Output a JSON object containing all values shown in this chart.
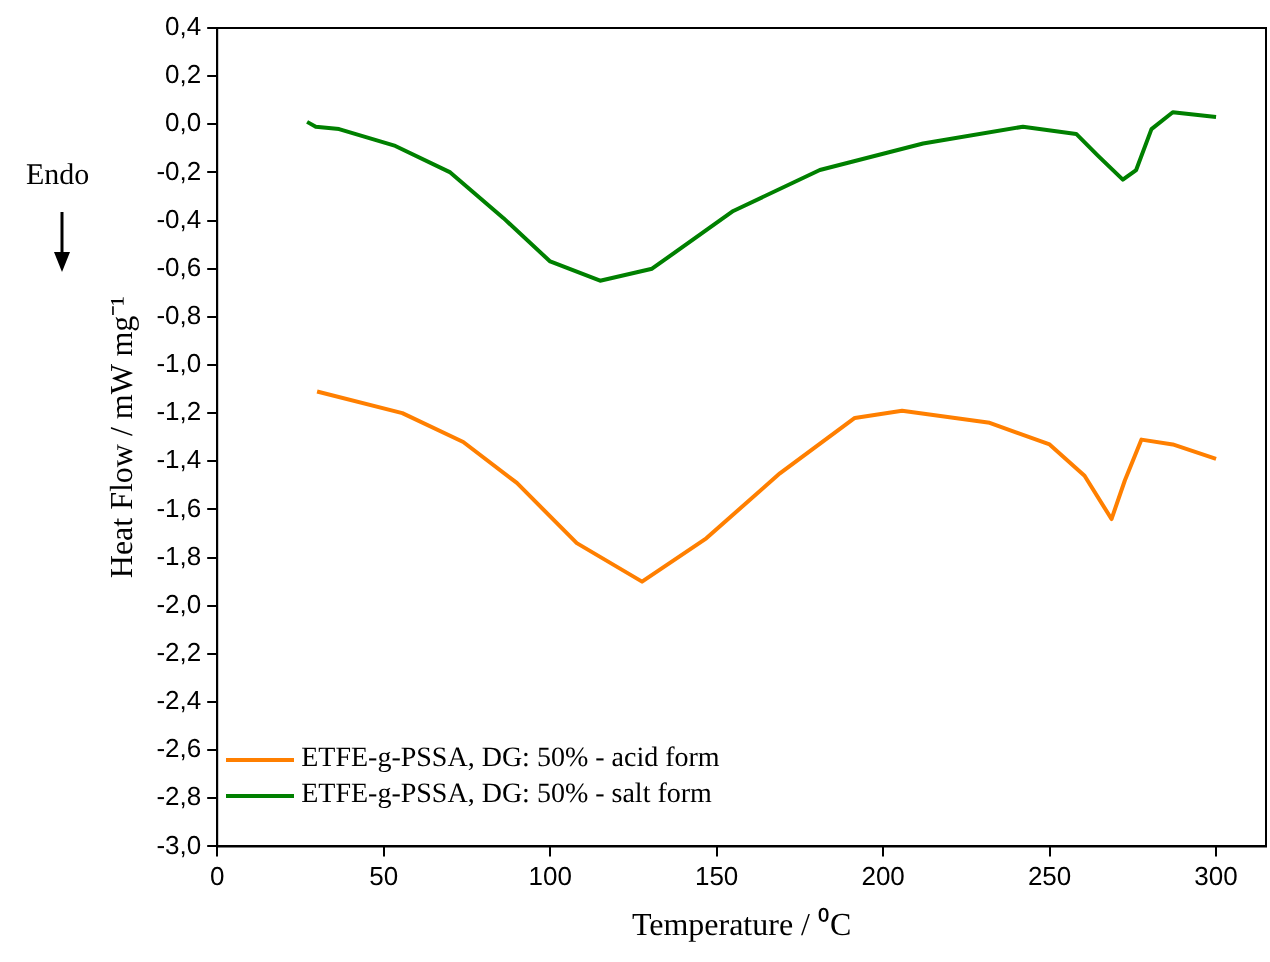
{
  "chart_data": {
    "type": "line",
    "xlabel": "Temperature / ⁰C",
    "ylabel": "Heat Flow / mW mg⁻¹",
    "annotations": [
      "Endo"
    ],
    "xlim": [
      0,
      315
    ],
    "xticks": [
      0,
      50,
      100,
      150,
      200,
      250,
      300
    ],
    "ylim": [
      -3,
      0.4
    ],
    "yticks": [
      {
        "value": -3,
        "label": "-3,0"
      },
      {
        "value": -2.8,
        "label": "-2,8"
      },
      {
        "value": -2.6,
        "label": "-2,6"
      },
      {
        "value": -2.4,
        "label": "-2,4"
      },
      {
        "value": -2.2,
        "label": "-2,2"
      },
      {
        "value": -2,
        "label": "-2,0"
      },
      {
        "value": -1.8,
        "label": "-1,8"
      },
      {
        "value": -1.6,
        "label": "-1,6"
      },
      {
        "value": -1.4,
        "label": "-1,4"
      },
      {
        "value": -1.2,
        "label": "-1,2"
      },
      {
        "value": -1,
        "label": "-1,0"
      },
      {
        "value": -0.8,
        "label": "-0,8"
      },
      {
        "value": -0.6,
        "label": "-0,6"
      },
      {
        "value": -0.4,
        "label": "-0,4"
      },
      {
        "value": -0.2,
        "label": "-0,2"
      },
      {
        "value": 0,
        "label": "0,0"
      },
      {
        "value": 0.2,
        "label": "0,2"
      },
      {
        "value": 0.4,
        "label": "0,4"
      }
    ],
    "grid": false,
    "legend": "bottom left",
    "marker": "none",
    "line_style": "solid",
    "series": [
      {
        "name": "ETFE-g-PSSA, DG: 50% - acid form",
        "color": "#ff7f00",
        "x": [
          30,
          55.6,
          73.9,
          90,
          108,
          127.6,
          146.9,
          169,
          191.5,
          205.7,
          232,
          250,
          260.5,
          268.6,
          272.6,
          277.6,
          287,
          300
        ],
        "values": [
          -1.11,
          -1.2,
          -1.32,
          -1.49,
          -1.74,
          -1.9,
          -1.72,
          -1.45,
          -1.22,
          -1.19,
          -1.24,
          -1.33,
          -1.46,
          -1.64,
          -1.48,
          -1.31,
          -1.33,
          -1.39
        ]
      },
      {
        "name": "ETFE-g-PSSA, DG: 50% - salt form",
        "color": "#008000",
        "x": [
          27,
          29.6,
          36.6,
          53.5,
          70,
          86,
          100,
          115,
          130.6,
          155,
          181,
          212,
          242,
          258,
          264.5,
          272,
          276,
          280.6,
          287,
          300
        ],
        "values": [
          0.01,
          -0.01,
          -0.02,
          -0.09,
          -0.2,
          -0.39,
          -0.57,
          -0.65,
          -0.6,
          -0.36,
          -0.19,
          -0.08,
          -0.01,
          -0.04,
          -0.13,
          -0.23,
          -0.19,
          -0.02,
          0.05,
          0.03
        ]
      }
    ]
  }
}
